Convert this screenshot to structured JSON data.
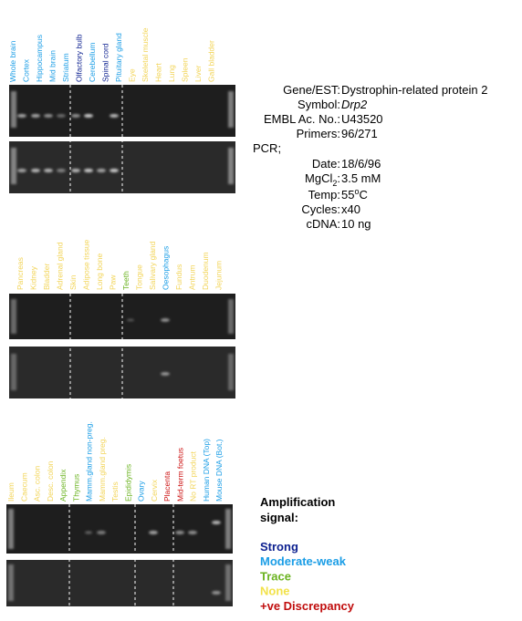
{
  "panels": [
    {
      "lanes": [
        {
          "label": "Whole brain",
          "color": "#1a9de6"
        },
        {
          "label": "Cortex",
          "color": "#1a9de6"
        },
        {
          "label": "Hippocampus",
          "color": "#1a9de6"
        },
        {
          "label": "Mid brain",
          "color": "#1a9de6"
        },
        {
          "label": "Striatum",
          "color": "#1a9de6"
        },
        {
          "label": "Olfactory bulb",
          "color": "#0b1f8f"
        },
        {
          "label": "Cerebellum",
          "color": "#1a9de6"
        },
        {
          "label": "Spinal cord",
          "color": "#0b1f8f"
        },
        {
          "label": "Pituitary gland",
          "color": "#1a9de6"
        },
        {
          "label": "Eye",
          "color": "#f2d457"
        },
        {
          "label": "Skeletal muscle",
          "color": "#f2d457"
        },
        {
          "label": "Heart",
          "color": "#f2d457"
        },
        {
          "label": "Lung",
          "color": "#f2d457"
        },
        {
          "label": "Spleen",
          "color": "#f2d457"
        },
        {
          "label": "Liver",
          "color": "#f2d457"
        },
        {
          "label": "Gall bladder",
          "color": "#f2d457"
        }
      ]
    },
    {
      "lanes": [
        {
          "label": "Pancreas",
          "color": "#f2d457"
        },
        {
          "label": "Kidney",
          "color": "#f2d457"
        },
        {
          "label": "Bladder",
          "color": "#f2d457"
        },
        {
          "label": "Adrenal gland",
          "color": "#f2d457"
        },
        {
          "label": "Skin",
          "color": "#f2d457"
        },
        {
          "label": "Adipose tissue",
          "color": "#f2d457"
        },
        {
          "label": "Long bone",
          "color": "#f2d457"
        },
        {
          "label": "Paw",
          "color": "#f2d457"
        },
        {
          "label": "Teeth",
          "color": "#6bb320"
        },
        {
          "label": "Tongue",
          "color": "#f2d457"
        },
        {
          "label": "Salivary gland",
          "color": "#f2d457"
        },
        {
          "label": "Oesophagus",
          "color": "#1a9de6"
        },
        {
          "label": "Fundus",
          "color": "#f2d457"
        },
        {
          "label": "Antrum",
          "color": "#f2d457"
        },
        {
          "label": "Duodenum",
          "color": "#f2d457"
        },
        {
          "label": "Jejunum",
          "color": "#f2d457"
        }
      ]
    },
    {
      "lanes": [
        {
          "label": "Ileum",
          "color": "#f2d457"
        },
        {
          "label": "Caecum",
          "color": "#f2d457"
        },
        {
          "label": "Asc. colon",
          "color": "#f2d457"
        },
        {
          "label": "Desc. colon",
          "color": "#f2d457"
        },
        {
          "label": "Appendix",
          "color": "#6bb320"
        },
        {
          "label": "Thymus",
          "color": "#6bb320"
        },
        {
          "label": "Mamm.gland non-preg.",
          "color": "#1a9de6"
        },
        {
          "label": "Mamm.gland preg.",
          "color": "#f2d457"
        },
        {
          "label": "Testis",
          "color": "#f2d457"
        },
        {
          "label": "Epididymis",
          "color": "#6bb320"
        },
        {
          "label": "Ovary",
          "color": "#1a9de6"
        },
        {
          "label": "Cervix",
          "color": "#f2d457"
        },
        {
          "label": "Placenta",
          "color": "#cc1111"
        },
        {
          "label": "Mid-term foetus",
          "color": "#cc1111"
        },
        {
          "label": "No RT product",
          "color": "#f2d457"
        },
        {
          "label": "Human DNA (Top)",
          "color": "#1a9de6"
        },
        {
          "label": "Mouse DNA (Bot.)",
          "color": "#1a9de6"
        }
      ]
    }
  ],
  "info": {
    "gene_label": "Gene/EST:",
    "gene": "Dystrophin-related protein 2",
    "symbol_label": "Symbol:",
    "symbol": "Drp2",
    "embl_label": "EMBL Ac. No.:",
    "embl": "U43520",
    "primers_label": "Primers:",
    "primers": "96/271",
    "pcr": "PCR;",
    "date_label": "Date:",
    "date": "18/6/96",
    "mgcl_label": "MgCl",
    "mgcl_sub": "2",
    "mgcl_colon": ":",
    "mgcl": "3.5 mM",
    "temp_label": "Temp:",
    "temp": "55",
    "temp_sup": "o",
    "temp_unit": "C",
    "cycles_label": "Cycles:",
    "cycles": "x40",
    "cdna_label": "cDNA:",
    "cdna": "10 ng"
  },
  "legend": {
    "title_1": "Amplification",
    "title_2": "signal:",
    "items": [
      {
        "label": "Strong",
        "color": "#0b1f8f"
      },
      {
        "label": "Moderate-weak",
        "color": "#1a9de6"
      },
      {
        "label": "Trace",
        "color": "#6bb320"
      },
      {
        "label": "None",
        "color": "#f2e24a"
      },
      {
        "label": "+ve Discrepancy",
        "color": "#c00d0d"
      }
    ]
  }
}
